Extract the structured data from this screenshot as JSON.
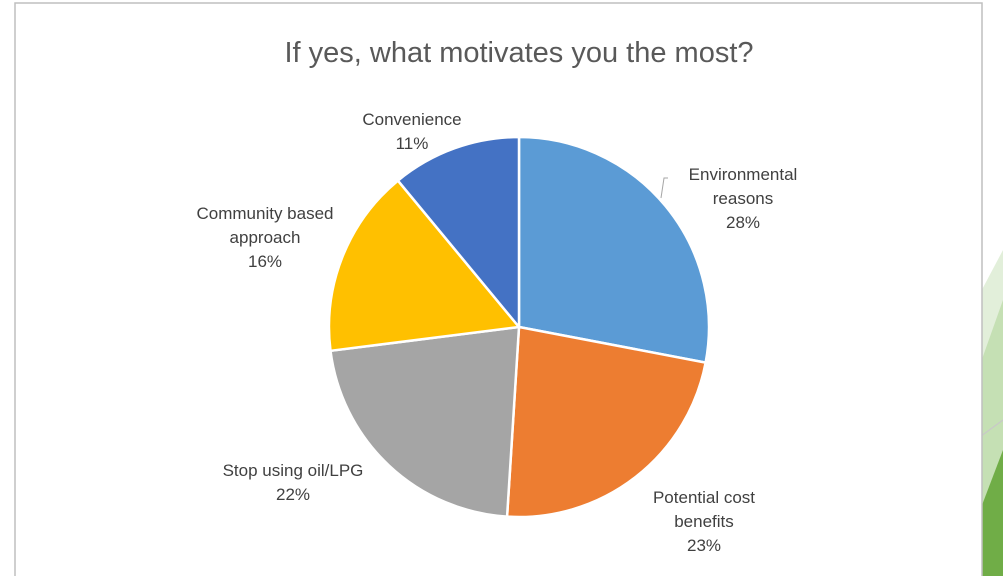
{
  "chart_data": {
    "type": "pie",
    "title": "If yes, what motivates you the most?",
    "slices": [
      {
        "label_lines": [
          "Environmental",
          "reasons"
        ],
        "percent_label": "28%",
        "value": 28,
        "color": "#5b9bd5"
      },
      {
        "label_lines": [
          "Potential cost",
          "benefits"
        ],
        "percent_label": "23%",
        "value": 23,
        "color": "#ed7d31"
      },
      {
        "label_lines": [
          "Stop using oil/LPG"
        ],
        "percent_label": "22%",
        "value": 22,
        "color": "#a5a5a5"
      },
      {
        "label_lines": [
          "Community based",
          "approach"
        ],
        "percent_label": "16%",
        "value": 16,
        "color": "#ffc000"
      },
      {
        "label_lines": [
          "Convenience"
        ],
        "percent_label": "11%",
        "value": 11,
        "color": "#4472c4"
      }
    ],
    "start_angle": "12 o'clock",
    "direction": "clockwise",
    "legend": "none"
  },
  "decoration": {
    "accent_colors": [
      "#e2efda",
      "#c5e0b4",
      "#70ad47"
    ]
  }
}
